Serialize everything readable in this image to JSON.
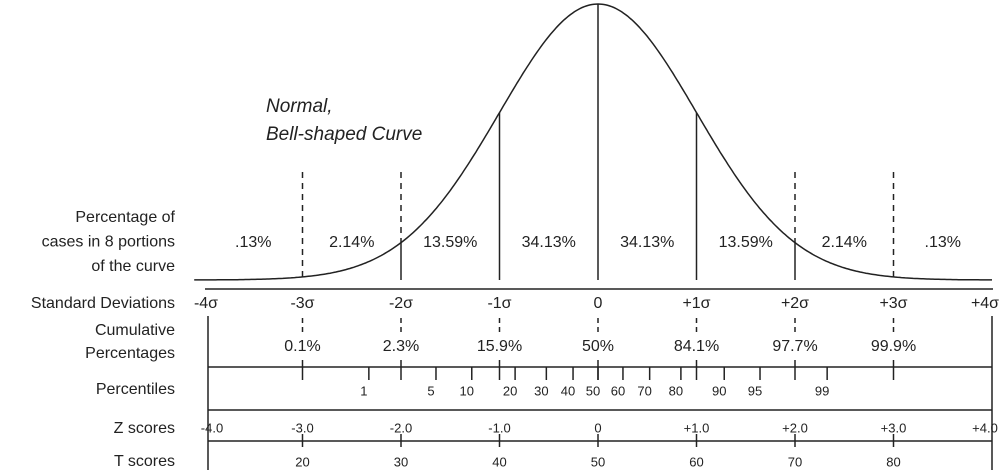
{
  "heading": {
    "lines": [
      "Normal,",
      "Bell-shaped Curve"
    ]
  },
  "rows": {
    "portions": {
      "label_lines": [
        "Percentage of",
        "cases in 8 portions",
        "of the curve"
      ],
      "values": [
        ".13%",
        "2.14%",
        "13.59%",
        "34.13%",
        "34.13%",
        "13.59%",
        "2.14%",
        ".13%"
      ]
    },
    "std_dev": {
      "label": "Standard Deviations",
      "values": [
        "-4σ",
        "-3σ",
        "-2σ",
        "-1σ",
        "0",
        "+1σ",
        "+2σ",
        "+3σ",
        "+4σ"
      ]
    },
    "cumulative": {
      "label_lines": [
        "Cumulative",
        "Percentages"
      ],
      "values": [
        "0.1%",
        "2.3%",
        "15.9%",
        "50%",
        "84.1%",
        "97.7%",
        "99.9%"
      ]
    },
    "percentiles": {
      "label": "Percentiles",
      "values": [
        "1",
        "5",
        "10",
        "20",
        "30",
        "40",
        "50",
        "60",
        "70",
        "80",
        "90",
        "95",
        "99"
      ]
    },
    "z_scores": {
      "label": "Z scores",
      "values": [
        "-4.0",
        "-3.0",
        "-2.0",
        "-1.0",
        "0",
        "+1.0",
        "+2.0",
        "+3.0",
        "+4.0"
      ]
    },
    "t_scores": {
      "label": "T scores",
      "values": [
        "20",
        "30",
        "40",
        "50",
        "60",
        "70",
        "80"
      ]
    }
  }
}
